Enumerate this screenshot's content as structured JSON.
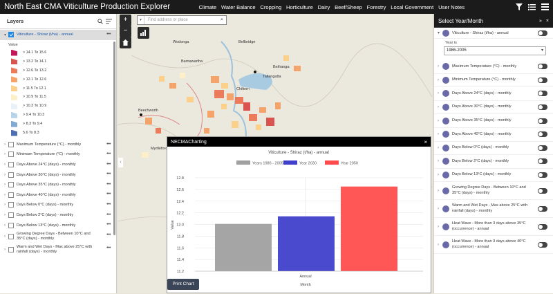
{
  "app": {
    "title": "North East CMA Viticulture Production Explorer",
    "nav": [
      "Climate",
      "Water Balance",
      "Cropping",
      "Horticulture",
      "Dairy",
      "Beef/Sheep",
      "Forestry",
      "Local Government",
      "User Notes"
    ]
  },
  "left_panel": {
    "title": "Layers",
    "active_layer": "Viticulture - Shiraz (t/ha) - annual",
    "legend_title": "Value",
    "legend": [
      {
        "label": "> 14.1 To 15.6",
        "color": "#c2185b"
      },
      {
        "label": "> 13.2 To 14.1",
        "color": "#d9534f"
      },
      {
        "label": "> 12.6 To 13.2",
        "color": "#ec7b5c"
      },
      {
        "label": "> 12.1 To 12.6",
        "color": "#f4a46b"
      },
      {
        "label": "> 11.5 To 12.1",
        "color": "#fbd08b"
      },
      {
        "label": "> 10.9 To 11.5",
        "color": "#fdf0c8"
      },
      {
        "label": "> 10.3 To 10.9",
        "color": "#e8f1f8"
      },
      {
        "label": "> 9.4 To 10.3",
        "color": "#b7d3e8"
      },
      {
        "label": "> 8.3 To 9.4",
        "color": "#7fa9d0"
      },
      {
        "label": "5.6 To 8.3",
        "color": "#4d6eb0"
      }
    ],
    "layers": [
      "Maximum Temperature (°C) - monthly",
      "Minimum Temperature (°C) - monthly",
      "Days Above 24°C (days) - monthly",
      "Days Above 30°C (days) - monthly",
      "Days Above 35°C (days) - monthly",
      "Days Above 40°C (days) - monthly",
      "Days Below 0°C (days) - monthly",
      "Days Below 2°C (days) - monthly",
      "Days Below 13°C (days) - monthly"
    ],
    "layers_two_line": [
      [
        "Growing Degree Days - Between 10°C and",
        "35°C (days) - monthly"
      ],
      [
        "Warm and Wet Days - Max above 25°C with",
        "rainfall (days) - monthly"
      ]
    ]
  },
  "map": {
    "search_placeholder": "Find address or place",
    "towns": [
      "Beechworth",
      "Myrtleford",
      "Tallangatta",
      "Chiltern",
      "Wodonga",
      "Bellbridge",
      "Barnawartha",
      "Bethanga"
    ]
  },
  "chart_window": {
    "title": "NECMACharting",
    "print_label": "Print Chart"
  },
  "chart_data": {
    "type": "bar",
    "title": "Viticulture - Shiraz (t/ha) - annual",
    "categories": [
      "Annual"
    ],
    "series": [
      {
        "name": "Years 1986 - 2005",
        "values": [
          12.01
        ],
        "color": "#a0a0a0"
      },
      {
        "name": "Year 2030",
        "values": [
          12.14
        ],
        "color": "#4040cc"
      },
      {
        "name": "Year 2050",
        "values": [
          12.65
        ],
        "color": "#ff4d4d"
      }
    ],
    "xlabel": "Month",
    "ylabel": "Value",
    "ylim": [
      11.2,
      12.8
    ],
    "yticks": [
      "11.2",
      "11.4",
      "11.6",
      "11.8",
      "12.0",
      "12.2",
      "12.4",
      "12.6",
      "12.8"
    ],
    "legend_position": "top"
  },
  "right_panel": {
    "title": "Select Year/Month",
    "active": {
      "label": "Viticulture - Shiraz (t/ha) - annual",
      "year_label": "Year is",
      "year_value": "1986-2005"
    },
    "rows": [
      [
        "Maximum Temperature (°C) - monthly"
      ],
      [
        "Minimum Temperature (°C) - monthly"
      ],
      [
        "Days Above 24°C (days) - monthly"
      ],
      [
        "Days Above 30°C (days) - monthly"
      ],
      [
        "Days Above 35°C (days) - monthly"
      ],
      [
        "Days Above 40°C (days) - monthly"
      ],
      [
        "Days Below 0°C (days) - monthly"
      ],
      [
        "Days Below 2°C (days) - monthly"
      ],
      [
        "Days Below 13°C (days) - monthly"
      ],
      [
        "Growing Degree Days - Between 10°C and",
        "35°C (days) - monthly"
      ],
      [
        "Warm and Wet Days - Max above 25°C with",
        "rainfall (days) - monthly"
      ],
      [
        "Heat Wave - More than 3 days above 35°C",
        "(occurrence) - annual"
      ],
      [
        "Heat Wave - More than 3 days above 40°C",
        "(occurrence) - annual"
      ]
    ]
  }
}
